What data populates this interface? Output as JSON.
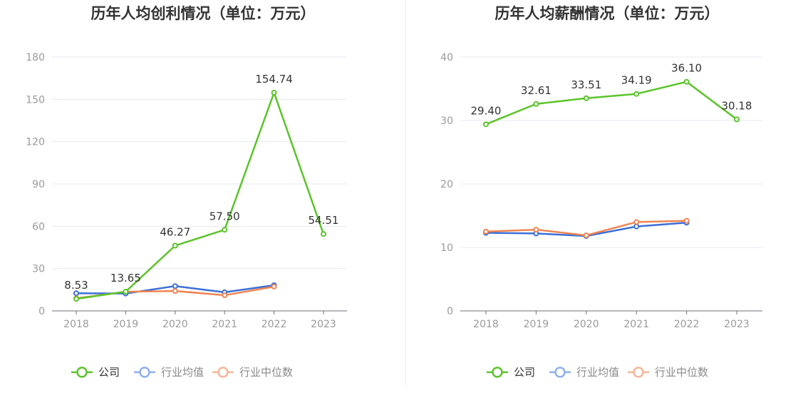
{
  "chart_data": [
    {
      "type": "line",
      "title": "历年人均创利情况（单位：万元）",
      "categories": [
        "2018",
        "2019",
        "2020",
        "2021",
        "2022",
        "2023"
      ],
      "ylim": [
        0,
        180
      ],
      "yticks": [
        0,
        30,
        60,
        90,
        120,
        150,
        180
      ],
      "grid": true,
      "legend_placement": "bottom",
      "series": [
        {
          "name": "公司",
          "color": "#5bc42a",
          "values": [
            8.53,
            13.65,
            46.27,
            57.5,
            154.74,
            54.51
          ],
          "labels": [
            "8.53",
            "13.65",
            "46.27",
            "57.50",
            "154.74",
            "54.51"
          ]
        },
        {
          "name": "行业均值",
          "color": "#3b6fd6",
          "values": [
            12.5,
            12.3,
            17.6,
            13.2,
            18.2,
            null
          ]
        },
        {
          "name": "行业中位数",
          "color": "#ee8552",
          "values": [
            8.9,
            13.6,
            14.1,
            11.1,
            17.2,
            null
          ]
        }
      ]
    },
    {
      "type": "line",
      "title": "历年人均薪酬情况（单位：万元）",
      "categories": [
        "2018",
        "2019",
        "2020",
        "2021",
        "2022",
        "2023"
      ],
      "ylim": [
        0,
        40
      ],
      "yticks": [
        0,
        10,
        20,
        30,
        40
      ],
      "grid": true,
      "legend_placement": "bottom",
      "series": [
        {
          "name": "公司",
          "color": "#5bc42a",
          "values": [
            29.4,
            32.61,
            33.51,
            34.19,
            36.1,
            30.18
          ],
          "labels": [
            "29.40",
            "32.61",
            "33.51",
            "34.19",
            "36.10",
            "30.18"
          ]
        },
        {
          "name": "行业均值",
          "color": "#3b6fd6",
          "values": [
            12.3,
            12.2,
            11.8,
            13.3,
            13.9,
            null
          ]
        },
        {
          "name": "行业中位数",
          "color": "#ee8552",
          "values": [
            12.5,
            12.8,
            11.9,
            14.0,
            14.2,
            null
          ]
        }
      ]
    }
  ]
}
